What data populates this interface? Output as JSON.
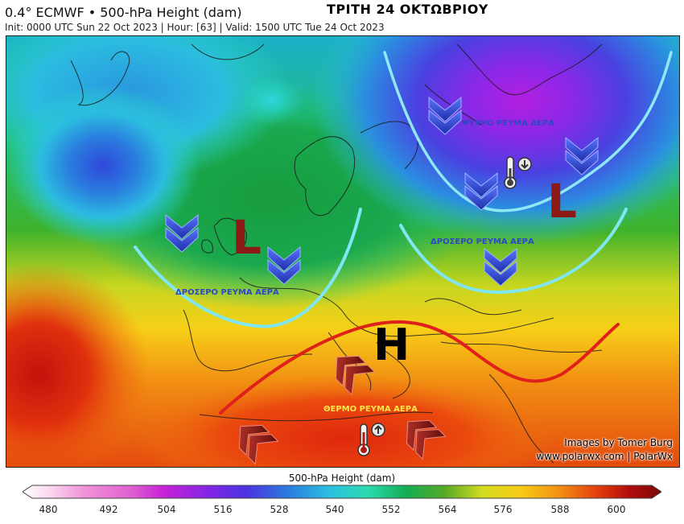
{
  "header": {
    "title": "0.4° ECMWF • 500-hPa Height (dam)",
    "subtitle": "Init: 0000 UTC Sun 22 Oct 2023 | Hour: [63] | Valid: 1500 UTC Tue 24 Oct 2023",
    "date_greek": "ΤΡΙΤΗ 24 ΟΚΤΩΒΡΙΟΥ"
  },
  "annotations": {
    "cool_flow_west": "ΔΡΟΣΕΡΟ ΡΕΥΜΑ ΑΕΡΑ",
    "cool_flow_east": "ΔΡΟΣΕΡΟ ΡΕΥΜΑ ΑΕΡΑ",
    "cold_flow_northeast": "ΨΥΧΡΟ ΡΕΥΜΑ ΑΕΡΑ",
    "warm_flow_south": "ΘΕΡΜΟ ΡΕΥΜΑ ΑΕΡΑ",
    "low_west": "L",
    "low_east": "L",
    "high_center": "H"
  },
  "credits": {
    "line1": "Images by Tomer Burg",
    "line2": "www.polarwx.com | PolarWx"
  },
  "colorbar": {
    "title": "500-hPa Height (dam)",
    "ticks": [
      "480",
      "492",
      "504",
      "516",
      "528",
      "540",
      "552",
      "564",
      "576",
      "588",
      "600"
    ],
    "min": 480,
    "max": 600,
    "colors": [
      "#ffffff",
      "#fbd9f1",
      "#f7b4e4",
      "#f08cd8",
      "#e860cf",
      "#dc3ccf",
      "#c822d8",
      "#a51fe0",
      "#8424e6",
      "#632ae6",
      "#4a33e0",
      "#3a48dc",
      "#2f63dd",
      "#2a80de",
      "#2aa0df",
      "#2bbfe0",
      "#2bd7d4",
      "#2bdbb0",
      "#20cf8d",
      "#18bf6e",
      "#14ad53",
      "#179a3d",
      "#2c9a2b",
      "#55a925",
      "#7fba22",
      "#a9cc20",
      "#d3dc20",
      "#f5e21c",
      "#f9cb17",
      "#f9b013",
      "#f59411",
      "#f0770f",
      "#ea5a0e",
      "#e33d0d",
      "#d9240d",
      "#c9150d",
      "#b20c0d",
      "#980a0b",
      "#7c0808"
    ],
    "color_notes": "gradient low (white/pink) to high (dark red)"
  },
  "colors": {
    "trough_line": "#7fe6f2",
    "ridge_line": "#e0201a",
    "cool_arrow": "#2e46c8",
    "warm_arrow": "#8b1a16",
    "low_letter": "#8b1a16",
    "high_letter": "#000000",
    "cool_text": "#2f47c4",
    "warm_text": "#ffe44a"
  }
}
